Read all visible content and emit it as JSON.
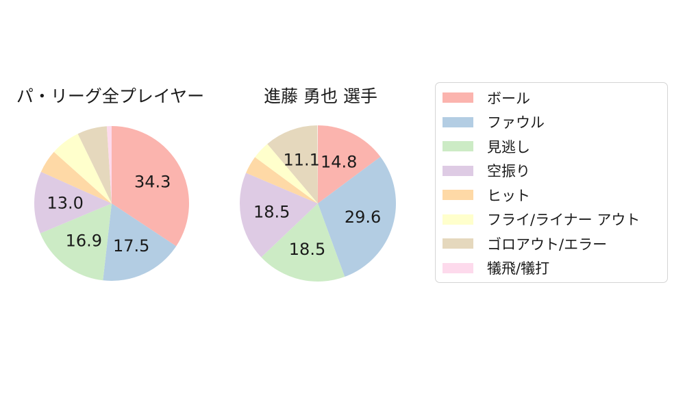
{
  "page": {
    "background": "#ffffff",
    "text_color": "#1a1a1a",
    "legend_border_color": "#d4d4d4"
  },
  "chart_data": [
    {
      "type": "pie",
      "name": "pa-league-all-players",
      "title": "パ・リーグ全プレイヤー",
      "categories": [
        "ボール",
        "ファウル",
        "見逃し",
        "空振り",
        "ヒット",
        "フライ/ライナー アウト",
        "ゴロアウト/エラー",
        "犠飛/犠打"
      ],
      "values": [
        34.3,
        17.5,
        16.9,
        13.0,
        4.9,
        6.2,
        6.2,
        1.0
      ],
      "colors": [
        "#fbb4ae",
        "#b3cde3",
        "#ccebc5",
        "#decbe4",
        "#fed9a6",
        "#ffffcc",
        "#e5d8bd",
        "#fddaec"
      ],
      "visible_labels": [
        "34.3",
        "17.5",
        "16.9",
        "13.0"
      ],
      "label_threshold_pct": 10,
      "startangle_deg": 90,
      "clockwise": true,
      "label_radius_frac": 0.6
    },
    {
      "type": "pie",
      "name": "shindo-yuya",
      "title": "進藤 勇也 選手",
      "categories": [
        "ボール",
        "ファウル",
        "見逃し",
        "空振り",
        "ヒット",
        "フライ/ライナー アウト",
        "ゴロアウト/エラー",
        "犠飛/犠打"
      ],
      "values": [
        14.8,
        29.6,
        18.5,
        18.5,
        3.7,
        3.7,
        11.1,
        0
      ],
      "colors": [
        "#fbb4ae",
        "#b3cde3",
        "#ccebc5",
        "#decbe4",
        "#fed9a6",
        "#ffffcc",
        "#e5d8bd",
        "#fddaec"
      ],
      "visible_labels": [
        "14.8",
        "29.6",
        "18.5",
        "18.5",
        "11.1"
      ],
      "label_threshold_pct": 10,
      "startangle_deg": 90,
      "clockwise": true,
      "label_radius_frac": 0.6
    }
  ],
  "legend": {
    "position": "right",
    "items": [
      {
        "label": "ボール",
        "color": "#fbb4ae"
      },
      {
        "label": "ファウル",
        "color": "#b3cde3"
      },
      {
        "label": "見逃し",
        "color": "#ccebc5"
      },
      {
        "label": "空振り",
        "color": "#decbe4"
      },
      {
        "label": "ヒット",
        "color": "#fed9a6"
      },
      {
        "label": "フライ/ライナー アウト",
        "color": "#ffffcc"
      },
      {
        "label": "ゴロアウト/エラー",
        "color": "#e5d8bd"
      },
      {
        "label": "犠飛/犠打",
        "color": "#fddaec"
      }
    ]
  }
}
